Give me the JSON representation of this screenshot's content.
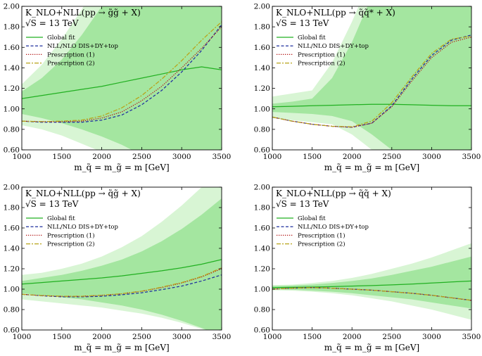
{
  "chart_data": [
    {
      "type": "line",
      "title": "K_NLO+NLL(pp → g̃g̃ + X)",
      "subtitle": "√S = 13 TeV",
      "xlabel": "m_q̃ = m_g̃ = m [GeV]",
      "ylabel": "",
      "xlim": [
        1000,
        3500
      ],
      "ylim": [
        0.6,
        2.0
      ],
      "xticks": [
        "1000",
        "1500",
        "2000",
        "2500",
        "3000",
        "3500"
      ],
      "yticks": [
        "0.60",
        "0.80",
        "1.00",
        "1.20",
        "1.40",
        "1.60",
        "1.80",
        "2.00"
      ],
      "legend_position": "upper-left",
      "x": [
        1000,
        1250,
        1500,
        1750,
        2000,
        2250,
        2500,
        2750,
        3000,
        3250,
        3500
      ],
      "series": [
        {
          "name": "Global fit",
          "values": [
            1.1,
            1.13,
            1.16,
            1.19,
            1.22,
            1.26,
            1.3,
            1.34,
            1.38,
            1.41,
            1.38
          ],
          "color": "#21b021",
          "dash": "solid"
        },
        {
          "name": "NLL/NLO DIS+DY+top",
          "values": [
            0.88,
            0.87,
            0.87,
            0.87,
            0.89,
            0.94,
            1.04,
            1.18,
            1.36,
            1.57,
            1.82
          ],
          "color": "#1f2f9e",
          "dash": "dashed"
        },
        {
          "name": "Prescription (1)",
          "values": [
            0.88,
            0.875,
            0.875,
            0.88,
            0.91,
            0.97,
            1.08,
            1.22,
            1.4,
            1.59,
            1.8
          ],
          "color": "#b41818",
          "dash": "dotted"
        },
        {
          "name": "Prescription (2)",
          "values": [
            0.88,
            0.875,
            0.88,
            0.89,
            0.93,
            1.01,
            1.13,
            1.29,
            1.47,
            1.67,
            1.85
          ],
          "color": "#b8a318",
          "dash": "dashdot"
        }
      ],
      "bands": [
        {
          "name": "outer",
          "upper": [
            1.24,
            1.43,
            1.68,
            1.97,
            2.3,
            2.6,
            2.9,
            3.2,
            3.5,
            3.8,
            4.1
          ],
          "lower": [
            0.84,
            0.8,
            0.74,
            0.66,
            0.58,
            0.5,
            0.42,
            0.34,
            0.26,
            0.18,
            0.1
          ],
          "color": "#d8f5d4"
        },
        {
          "name": "inner",
          "upper": [
            1.17,
            1.3,
            1.48,
            1.72,
            2.0,
            2.3,
            2.6,
            2.9,
            3.2,
            3.5,
            3.8
          ],
          "lower": [
            0.95,
            0.91,
            0.86,
            0.8,
            0.73,
            0.65,
            0.55,
            0.45,
            0.35,
            0.25,
            0.15
          ],
          "color": "#a4e6a0"
        }
      ]
    },
    {
      "type": "line",
      "title": "K_NLO+NLL(pp → q̃q̃* + X)",
      "subtitle": "√S = 13 TeV",
      "xlabel": "m_q̃ = m_g̃ = m [GeV]",
      "ylabel": "",
      "xlim": [
        1000,
        3500
      ],
      "ylim": [
        0.6,
        2.0
      ],
      "xticks": [
        "1000",
        "1500",
        "2000",
        "2500",
        "3000",
        "3500"
      ],
      "yticks": [
        "0.60",
        "0.80",
        "1.00",
        "1.20",
        "1.40",
        "1.60",
        "1.80",
        "2.00"
      ],
      "legend_position": "upper-left",
      "x": [
        1000,
        1250,
        1500,
        1750,
        2000,
        2250,
        2500,
        2750,
        3000,
        3250,
        3500
      ],
      "series": [
        {
          "name": "Global fit",
          "values": [
            1.02,
            1.025,
            1.03,
            1.035,
            1.04,
            1.045,
            1.045,
            1.04,
            1.035,
            1.03,
            1.03
          ],
          "color": "#21b021",
          "dash": "solid"
        },
        {
          "name": "NLL/NLO DIS+DY+top",
          "values": [
            0.92,
            0.88,
            0.85,
            0.83,
            0.82,
            0.86,
            1.03,
            1.29,
            1.52,
            1.67,
            1.72
          ],
          "color": "#1f2f9e",
          "dash": "dashed"
        },
        {
          "name": "Prescription (1)",
          "values": [
            0.92,
            0.88,
            0.85,
            0.83,
            0.82,
            0.86,
            1.02,
            1.27,
            1.5,
            1.65,
            1.7
          ],
          "color": "#b41818",
          "dash": "dotted"
        },
        {
          "name": "Prescription (2)",
          "values": [
            0.92,
            0.88,
            0.85,
            0.83,
            0.825,
            0.88,
            1.06,
            1.31,
            1.54,
            1.68,
            1.71
          ],
          "color": "#b8a318",
          "dash": "dashdot"
        }
      ],
      "bands": [
        {
          "name": "outer",
          "upper": [
            1.12,
            1.15,
            1.18,
            1.45,
            1.85,
            2.3,
            2.8,
            3.3,
            3.8,
            4.3,
            4.8
          ],
          "lower": [
            0.91,
            0.89,
            0.87,
            0.85,
            0.75,
            0.6,
            0.45,
            0.3,
            0.15,
            0.0,
            -0.15
          ],
          "color": "#d8f5d4"
        },
        {
          "name": "inner",
          "upper": [
            1.05,
            1.07,
            1.1,
            1.3,
            1.65,
            2.1,
            2.6,
            3.1,
            3.6,
            4.1,
            4.6
          ],
          "lower": [
            0.97,
            0.96,
            0.95,
            0.93,
            0.88,
            0.75,
            0.6,
            0.45,
            0.3,
            0.15,
            0.0
          ],
          "color": "#a4e6a0"
        }
      ]
    },
    {
      "type": "line",
      "title": "K_NLO+NLL(pp → q̃g̃ + X)",
      "subtitle": "√S = 13 TeV",
      "xlabel": "m_q̃ = m_g̃ = m [GeV]",
      "ylabel": "",
      "xlim": [
        1000,
        3500
      ],
      "ylim": [
        0.6,
        2.0
      ],
      "xticks": [
        "1000",
        "1500",
        "2000",
        "2500",
        "3000",
        "3500"
      ],
      "yticks": [
        "0.60",
        "0.80",
        "1.00",
        "1.20",
        "1.40",
        "1.60",
        "1.80",
        "2.00"
      ],
      "legend_position": "upper-left",
      "x": [
        1000,
        1250,
        1500,
        1750,
        2000,
        2250,
        2500,
        2750,
        3000,
        3250,
        3500
      ],
      "series": [
        {
          "name": "Global fit",
          "values": [
            1.05,
            1.065,
            1.08,
            1.095,
            1.11,
            1.13,
            1.155,
            1.18,
            1.21,
            1.245,
            1.29
          ],
          "color": "#21b021",
          "dash": "solid"
        },
        {
          "name": "NLL/NLO DIS+DY+top",
          "values": [
            0.95,
            0.935,
            0.925,
            0.925,
            0.93,
            0.945,
            0.965,
            0.995,
            1.03,
            1.08,
            1.14
          ],
          "color": "#1f2f9e",
          "dash": "dashed"
        },
        {
          "name": "Prescription (1)",
          "values": [
            0.95,
            0.937,
            0.93,
            0.93,
            0.94,
            0.955,
            0.98,
            1.015,
            1.06,
            1.12,
            1.2
          ],
          "color": "#b41818",
          "dash": "dotted"
        },
        {
          "name": "Prescription (2)",
          "values": [
            0.95,
            0.937,
            0.93,
            0.93,
            0.94,
            0.955,
            0.98,
            1.02,
            1.065,
            1.125,
            1.21
          ],
          "color": "#b8a318",
          "dash": "dashdot"
        }
      ],
      "bands": [
        {
          "name": "outer",
          "upper": [
            1.14,
            1.16,
            1.2,
            1.25,
            1.32,
            1.41,
            1.52,
            1.66,
            1.82,
            2.0,
            2.2
          ],
          "lower": [
            0.9,
            0.88,
            0.86,
            0.84,
            0.82,
            0.79,
            0.76,
            0.72,
            0.67,
            0.61,
            0.54
          ],
          "color": "#d8f5d4"
        },
        {
          "name": "inner",
          "upper": [
            1.08,
            1.11,
            1.14,
            1.18,
            1.23,
            1.29,
            1.37,
            1.47,
            1.59,
            1.73,
            1.89
          ],
          "lower": [
            0.96,
            0.94,
            0.92,
            0.9,
            0.87,
            0.84,
            0.8,
            0.75,
            0.69,
            0.62,
            0.54
          ],
          "color": "#a4e6a0"
        }
      ]
    },
    {
      "type": "line",
      "title": "K_NLO+NLL(pp → q̃q̃ + X)",
      "subtitle": "√S = 13 TeV",
      "xlabel": "m_q̃ = m_g̃ = m [GeV]",
      "ylabel": "",
      "xlim": [
        1000,
        3500
      ],
      "ylim": [
        0.6,
        2.0
      ],
      "xticks": [
        "1000",
        "1500",
        "2000",
        "2500",
        "3000",
        "3500"
      ],
      "yticks": [
        "0.60",
        "0.80",
        "1.00",
        "1.20",
        "1.40",
        "1.60",
        "1.80",
        "2.00"
      ],
      "legend_position": "upper-left",
      "x": [
        1000,
        1250,
        1500,
        1750,
        2000,
        2250,
        2500,
        2750,
        3000,
        3250,
        3500
      ],
      "series": [
        {
          "name": "Global fit",
          "values": [
            1.015,
            1.018,
            1.021,
            1.025,
            1.03,
            1.035,
            1.042,
            1.05,
            1.06,
            1.07,
            1.08
          ],
          "color": "#21b021",
          "dash": "solid"
        },
        {
          "name": "NLL/NLO DIS+DY+top",
          "values": [
            1.0,
            1.01,
            1.015,
            1.01,
            1.0,
            0.99,
            0.975,
            0.96,
            0.94,
            0.915,
            0.89
          ],
          "color": "#1f2f9e",
          "dash": "dashed"
        },
        {
          "name": "Prescription (1)",
          "values": [
            1.0,
            1.01,
            1.015,
            1.01,
            1.0,
            0.99,
            0.975,
            0.96,
            0.94,
            0.915,
            0.89
          ],
          "color": "#b41818",
          "dash": "dotted"
        },
        {
          "name": "Prescription (2)",
          "values": [
            1.0,
            1.01,
            1.015,
            1.01,
            1.0,
            0.99,
            0.975,
            0.96,
            0.94,
            0.915,
            0.89
          ],
          "color": "#b8a318",
          "dash": "dashdot"
        }
      ],
      "bands": [
        {
          "name": "outer",
          "upper": [
            1.04,
            1.045,
            1.06,
            1.08,
            1.11,
            1.15,
            1.2,
            1.25,
            1.31,
            1.38,
            1.45
          ],
          "lower": [
            0.99,
            0.985,
            0.975,
            0.96,
            0.94,
            0.91,
            0.88,
            0.84,
            0.8,
            0.75,
            0.7
          ],
          "color": "#d8f5d4"
        },
        {
          "name": "inner",
          "upper": [
            1.03,
            1.035,
            1.045,
            1.06,
            1.08,
            1.105,
            1.14,
            1.18,
            1.22,
            1.27,
            1.32
          ],
          "lower": [
            1.0,
            0.995,
            0.985,
            0.975,
            0.96,
            0.94,
            0.92,
            0.9,
            0.87,
            0.84,
            0.81
          ],
          "color": "#a4e6a0"
        }
      ]
    }
  ]
}
